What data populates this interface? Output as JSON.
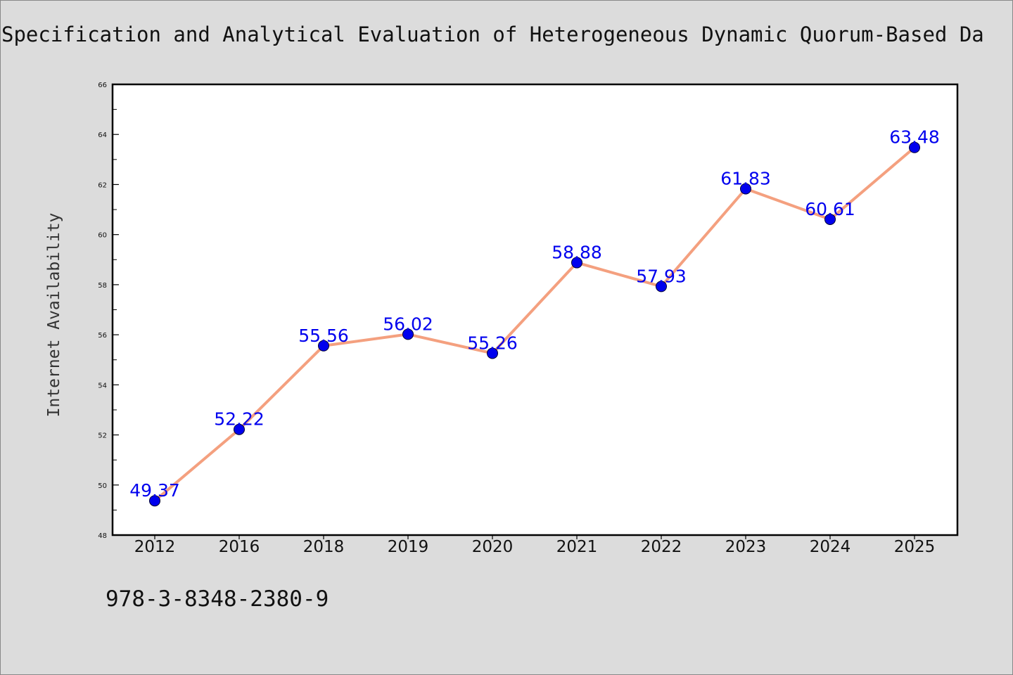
{
  "page": {
    "note": "978-3-8348-2380-9"
  },
  "chart_data": {
    "type": "line",
    "title": "Specification and Analytical Evaluation of Heterogeneous Dynamic Quorum-Based Da",
    "xlabel": "",
    "ylabel": "Internet Availability",
    "categories": [
      "2012",
      "2016",
      "2018",
      "2019",
      "2020",
      "2021",
      "2022",
      "2023",
      "2024",
      "2025"
    ],
    "series": [
      {
        "values": [
          49.37,
          52.22,
          55.56,
          56.02,
          55.26,
          58.88,
          57.93,
          61.83,
          60.61,
          63.48
        ],
        "line_color": "#f4a07f",
        "marker_color": "#0000ee",
        "label_color": "#0000ee"
      }
    ],
    "data_labels": [
      "49.37",
      "52.22",
      "55.56",
      "56.02",
      "55.26",
      "58.88",
      "57.93",
      "61.83",
      "60.61",
      "63.48"
    ],
    "ylim": [
      48,
      66
    ],
    "y_ticks": [
      48,
      50,
      52,
      54,
      56,
      58,
      60,
      62,
      64,
      66
    ],
    "y_tick_labels": [
      "48",
      "50",
      "52",
      "54",
      "56",
      "58",
      "60",
      "62",
      "64",
      "66"
    ],
    "grid": false,
    "legend": "none"
  }
}
